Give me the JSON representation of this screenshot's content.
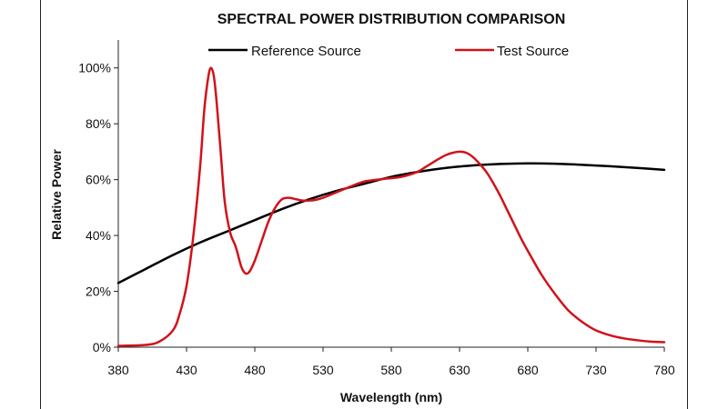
{
  "chart_data": {
    "type": "line",
    "title": "SPECTRAL POWER DISTRIBUTION COMPARISON",
    "xlabel": "Wavelength (nm)",
    "ylabel": "Relative Power",
    "xlim": [
      380,
      780
    ],
    "ylim": [
      0,
      110
    ],
    "x_ticks": [
      "380",
      "430",
      "480",
      "530",
      "580",
      "630",
      "680",
      "730",
      "780"
    ],
    "y_ticks": [
      "0%",
      "20%",
      "40%",
      "60%",
      "80%",
      "100%"
    ],
    "grid": false,
    "legend_position": "top",
    "series": [
      {
        "name": "Reference Source",
        "color": "#000000",
        "x": [
          380,
          400,
          420,
          440,
          460,
          480,
          500,
          520,
          540,
          560,
          580,
          600,
          620,
          640,
          660,
          680,
          700,
          720,
          740,
          760,
          780
        ],
        "y": [
          23,
          28,
          33,
          37.5,
          41.5,
          45.5,
          49.5,
          53,
          56,
          58.5,
          61,
          62.8,
          64.2,
          65.1,
          65.6,
          65.8,
          65.7,
          65.3,
          64.8,
          64.2,
          63.5
        ]
      },
      {
        "name": "Test Source",
        "color": "#d0121b",
        "x": [
          380,
          400,
          410,
          420,
          425,
          430,
          435,
          440,
          443,
          446,
          448,
          450,
          452,
          455,
          458,
          462,
          466,
          470,
          473,
          476,
          480,
          485,
          490,
          495,
          500,
          505,
          510,
          515,
          520,
          525,
          530,
          535,
          540,
          545,
          550,
          555,
          560,
          565,
          570,
          575,
          580,
          585,
          590,
          595,
          600,
          605,
          610,
          615,
          620,
          625,
          630,
          635,
          640,
          645,
          650,
          655,
          660,
          665,
          670,
          675,
          680,
          690,
          700,
          710,
          720,
          730,
          740,
          750,
          760,
          770,
          780
        ],
        "y": [
          0.5,
          0.8,
          2,
          6,
          12,
          22,
          40,
          65,
          85,
          97,
          100,
          97,
          88,
          70,
          52,
          41,
          36,
          29,
          26.5,
          27,
          31,
          38,
          45,
          50,
          53,
          53.5,
          53,
          52.5,
          52.5,
          52.8,
          53.5,
          54.5,
          55.5,
          56.5,
          57.5,
          58.5,
          59.3,
          59.7,
          60,
          60.3,
          60.5,
          60.8,
          61.3,
          62,
          63,
          64.5,
          66,
          67.5,
          68.8,
          69.6,
          70,
          69.6,
          68,
          65.5,
          62.5,
          58.5,
          54,
          49,
          44,
          39,
          34.5,
          26,
          19,
          13,
          9,
          6,
          4.3,
          3.2,
          2.5,
          2,
          1.8
        ]
      }
    ]
  }
}
